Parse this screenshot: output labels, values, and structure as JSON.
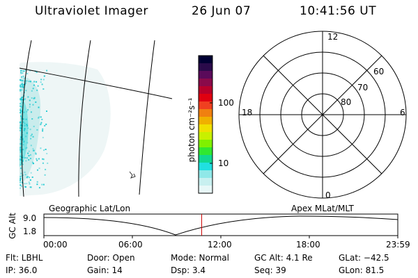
{
  "header": {
    "instrument": "Ultraviolet Imager",
    "date": "26 Jun 07",
    "time": "10:41:56 UT"
  },
  "colorbar": {
    "unit_label": "photon cm⁻²s⁻¹",
    "tick_100": "100",
    "tick_10": "10",
    "colors": [
      "#000033",
      "#2a0a4a",
      "#5a0a5a",
      "#8a0a4a",
      "#b8002a",
      "#e00010",
      "#f04020",
      "#f08010",
      "#f0b000",
      "#f0e000",
      "#c8f000",
      "#80f000",
      "#30e830",
      "#10d890",
      "#20e0e0",
      "#90e8e8",
      "#c8f0f0",
      "#e8f8f8"
    ]
  },
  "polar": {
    "mlt_labels": {
      "top": "12",
      "left": "18",
      "right": "6",
      "bottom": "0"
    },
    "lat_labels": [
      "60",
      "70",
      "80"
    ]
  },
  "timeline": {
    "y_axis_label": "GC Alt",
    "y_ticks": [
      "9.0",
      "1.8"
    ],
    "left_title": "Geographic Lat/Lon",
    "right_title": "Apex MLat/MLT",
    "x_ticks": [
      "00:00",
      "06:00",
      "12:00",
      "18:00",
      "23:59"
    ],
    "marker_color": "#cc0000",
    "current_time_fraction": 0.4458
  },
  "status": {
    "flt": "Flt: LBHL",
    "ip": "IP: 36.0",
    "door": "Door: Open",
    "gain": "Gain: 14",
    "mode": "Mode: Normal",
    "dsp": "Dsp:     3.4",
    "gc_alt": "GC Alt: 4.1 Re",
    "seq": "Seq: 39",
    "glat": "GLat: −42.5",
    "glon": "GLon:  81.5"
  }
}
